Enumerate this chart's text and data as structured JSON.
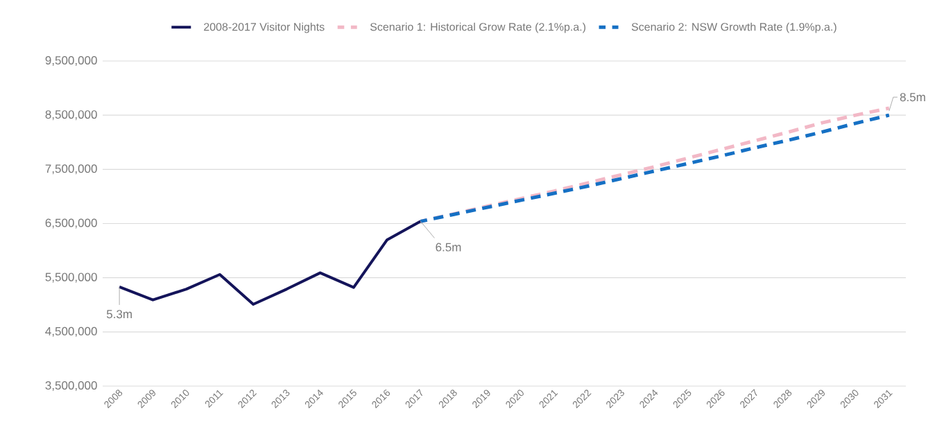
{
  "chart_data": {
    "type": "line",
    "categories": [
      "2008",
      "2009",
      "2010",
      "2011",
      "2012",
      "2013",
      "2014",
      "2015",
      "2016",
      "2017",
      "2018",
      "2019",
      "2020",
      "2021",
      "2022",
      "2023",
      "2024",
      "2025",
      "2026",
      "2027",
      "2028",
      "2029",
      "2030",
      "2031"
    ],
    "series": [
      {
        "name": "2008-2017 Visitor Nights",
        "color": "#14145a",
        "line_style": "solid",
        "values": [
          5330000,
          5090000,
          5290000,
          5560000,
          5010000,
          5290000,
          5590000,
          5320000,
          6200000,
          6540000,
          null,
          null,
          null,
          null,
          null,
          null,
          null,
          null,
          null,
          null,
          null,
          null,
          null,
          null
        ]
      },
      {
        "name": "Scenario 1: Historical Grow Rate (2.1%p.a.)",
        "color": "#f2b8c6",
        "line_style": "dashed",
        "values": [
          null,
          null,
          null,
          null,
          null,
          null,
          null,
          null,
          null,
          6540000,
          6680000,
          6820000,
          6960000,
          7100000,
          7250000,
          7400000,
          7550000,
          7710000,
          7870000,
          8030000,
          8190000,
          8360000,
          8500000,
          8630000
        ]
      },
      {
        "name": "Scenario 2: NSW Growth Rate (1.9%p.a.)",
        "color": "#1570c4",
        "line_style": "dashed",
        "values": [
          null,
          null,
          null,
          null,
          null,
          null,
          null,
          null,
          null,
          6540000,
          6670000,
          6800000,
          6930000,
          7060000,
          7190000,
          7330000,
          7470000,
          7610000,
          7750000,
          7900000,
          8040000,
          8190000,
          8350000,
          8500000
        ]
      }
    ],
    "ylim": [
      3500000,
      9500000
    ],
    "yticks": [
      {
        "value": 3500000,
        "label": "3,500,000"
      },
      {
        "value": 4500000,
        "label": "4,500,000"
      },
      {
        "value": 5500000,
        "label": "5,500,000"
      },
      {
        "value": 6500000,
        "label": "6,500,000"
      },
      {
        "value": 7500000,
        "label": "7,500,000"
      },
      {
        "value": 8500000,
        "label": "8,500,000"
      },
      {
        "value": 9500000,
        "label": "9,500,000"
      }
    ],
    "grid": "y",
    "legend": "top",
    "marker": "none",
    "annotations": [
      {
        "text": "5.3m",
        "x": "2008",
        "y": 5330000
      },
      {
        "text": "6.5m",
        "x": "2017",
        "y": 6540000
      },
      {
        "text": "8.5m",
        "x": "2031",
        "y": 8500000
      }
    ]
  }
}
